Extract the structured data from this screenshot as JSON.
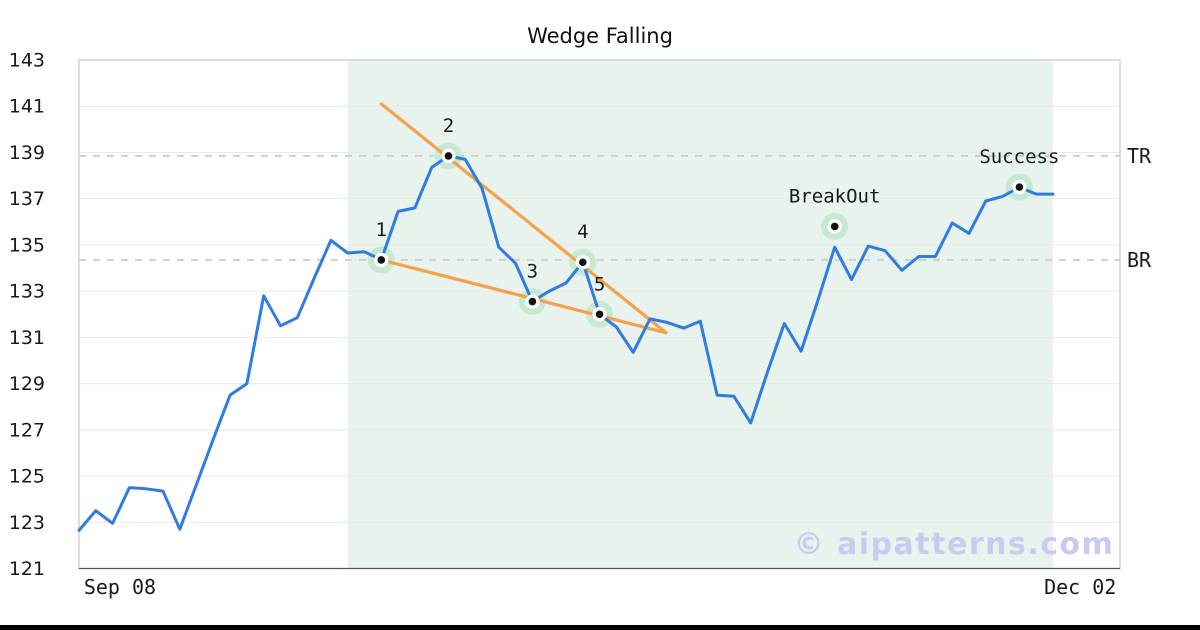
{
  "title": "Wedge Falling",
  "watermark": "© aipatterns.com",
  "colors": {
    "price_line": "#2E7CE0",
    "trendline": "#F5A14B",
    "shade": "#E8F3EE",
    "marker_halo": "#C6E9D4",
    "marker_dot": "#111111",
    "marker_ring": "#FFFFFF",
    "grid": "#E9E9E9",
    "spine": "#C9C9C9",
    "bottom_spine": "#555555",
    "dashed_level": "#CFCFCF",
    "text": "#1A1A1A",
    "watermark_color": "#C9CAEF",
    "bottom_bar": "#000000"
  },
  "chart_data": {
    "type": "line",
    "title": "Wedge Falling",
    "x_axis": {
      "tick_labels": [
        {
          "label": "Sep 08",
          "pos": 2.44
        },
        {
          "label": "Dec 02",
          "pos": 59.62
        }
      ]
    },
    "y_axis": {
      "min": 121,
      "max": 143,
      "tick_step": 2,
      "tick_labels": [
        "121",
        "123",
        "125",
        "127",
        "129",
        "131",
        "133",
        "135",
        "137",
        "139",
        "141",
        "143"
      ]
    },
    "series": {
      "name": "price",
      "values": [
        122.65,
        123.5,
        122.95,
        124.5,
        124.45,
        124.35,
        122.7,
        124.65,
        126.6,
        128.5,
        129.0,
        132.8,
        131.5,
        131.85,
        133.55,
        135.2,
        134.65,
        134.7,
        134.35,
        136.45,
        136.6,
        138.35,
        138.85,
        138.7,
        137.45,
        134.9,
        134.2,
        132.55,
        133.0,
        133.35,
        134.25,
        132.0,
        131.45,
        130.35,
        131.8,
        131.65,
        131.4,
        131.7,
        128.5,
        128.45,
        127.3,
        129.5,
        131.6,
        130.4,
        132.6,
        134.9,
        133.5,
        134.95,
        134.75,
        133.9,
        134.5,
        134.5,
        135.95,
        135.5,
        136.9,
        137.1,
        137.5,
        137.2,
        137.2
      ]
    },
    "levels": [
      {
        "label": "TR",
        "value": 138.85
      },
      {
        "label": "BR",
        "value": 134.35
      }
    ],
    "pattern_points": [
      {
        "label": "1",
        "index": 18,
        "value": 134.35
      },
      {
        "label": "2",
        "index": 22,
        "value": 138.85
      },
      {
        "label": "3",
        "index": 27,
        "value": 132.55
      },
      {
        "label": "4",
        "index": 30,
        "value": 134.25
      },
      {
        "label": "5",
        "index": 31,
        "value": 132.0
      }
    ],
    "annotations": [
      {
        "label": "BreakOut",
        "index": 45,
        "value": 135.8
      },
      {
        "label": "Success",
        "index": 56,
        "value": 137.5
      }
    ],
    "trendlines": [
      {
        "from_index": 18,
        "from_value": 141.1,
        "to_index": 34.96,
        "to_value": 131.2
      },
      {
        "from_index": 18,
        "from_value": 134.35,
        "to_index": 34.96,
        "to_value": 131.2
      }
    ],
    "shaded_region": {
      "from_index": 16,
      "to_index": 58
    },
    "watermark": "© aipatterns.com"
  }
}
